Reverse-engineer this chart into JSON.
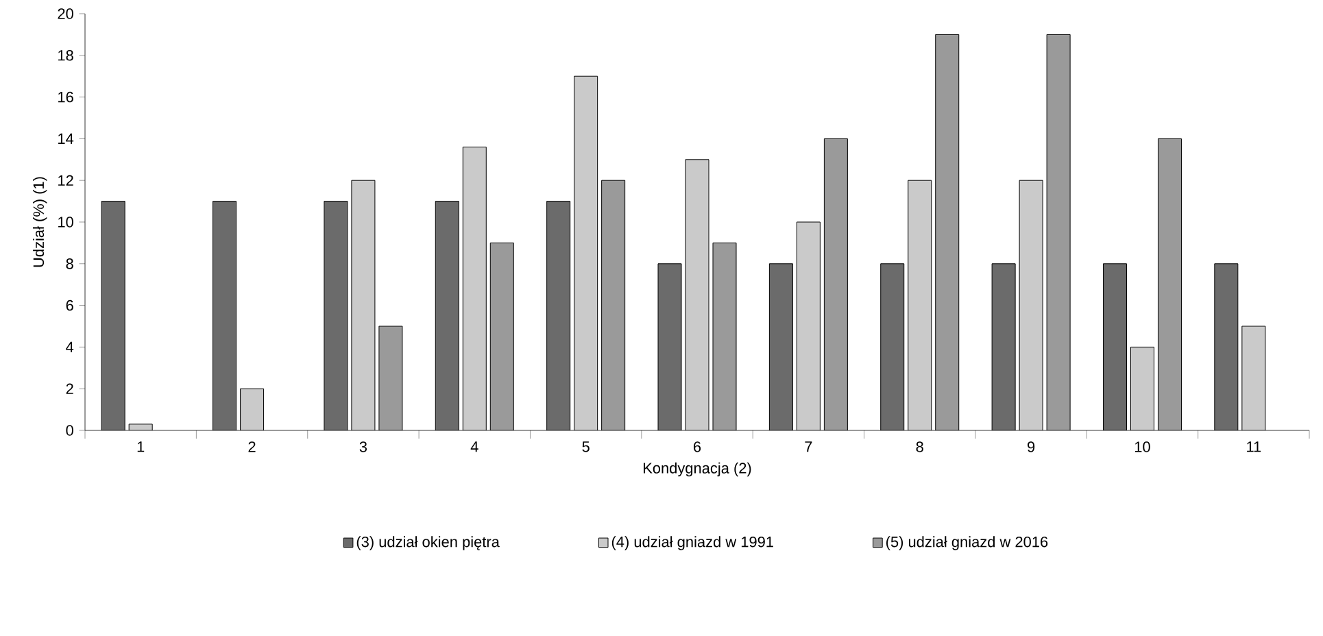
{
  "chart_data": {
    "type": "bar",
    "xlabel": "Kondygnacja (2)",
    "ylabel": "Udział (%) (1)",
    "categories": [
      "1",
      "2",
      "3",
      "4",
      "5",
      "6",
      "7",
      "8",
      "9",
      "10",
      "11"
    ],
    "series": [
      {
        "name": "(3) udział okien piętra",
        "color": "#6b6b6b",
        "values": [
          11,
          11,
          11,
          11,
          11,
          8,
          8,
          8,
          8,
          8,
          8
        ]
      },
      {
        "name": "(4) udział gniazd w 1991",
        "color": "#cacaca",
        "values": [
          0.3,
          2,
          12,
          13.6,
          17,
          13,
          10,
          12,
          12,
          4,
          5
        ]
      },
      {
        "name": "(5) udział gniazd w 2016",
        "color": "#9a9a9a",
        "values": [
          null,
          null,
          5,
          9,
          12,
          9,
          14,
          19,
          19,
          14,
          null
        ]
      }
    ],
    "ylim": [
      0,
      20
    ],
    "yticks": [
      0,
      2,
      4,
      6,
      8,
      10,
      12,
      14,
      16,
      18,
      20
    ],
    "grid": false,
    "legend": "bottom"
  }
}
